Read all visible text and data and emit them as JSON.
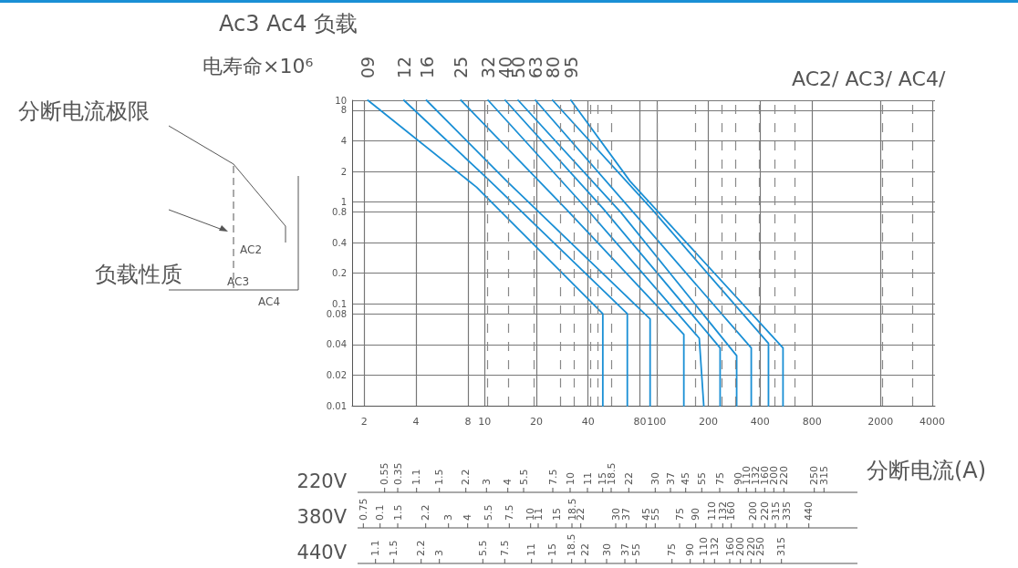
{
  "chart_data": {
    "type": "line",
    "title": "Ac3 Ac4 负载",
    "ylabel": "电寿命×10⁶",
    "xlabel": "分断电流(A)",
    "annotations": [
      "AC2/ AC3/ AC4/",
      "分断电流极限",
      "负载性质",
      "AC2",
      "AC3",
      "AC4",
      "220V",
      "0.55",
      "0.35",
      "1.1",
      "1.5",
      "2.2",
      "3",
      "4",
      "5.5",
      "7.5",
      "10",
      "11",
      "15",
      "18.5",
      "22",
      "30",
      "37",
      "45",
      "55",
      "75",
      "90",
      "110",
      "132",
      "160",
      "200",
      "220",
      "250",
      "315",
      "380V",
      "0.75",
      "0.1",
      "1.5",
      "2.2",
      "3",
      "4",
      "5.5",
      "7.5",
      "10",
      "11",
      "15",
      "18.5",
      "22",
      "30",
      "37",
      "45",
      "55",
      "75",
      "90",
      "110",
      "132",
      "160",
      "200",
      "220",
      "315",
      "335",
      "440",
      "440V",
      "1.1",
      "1.5",
      "2.2",
      "3",
      "5.5",
      "7.5",
      "11",
      "15",
      "18.5",
      "22",
      "30",
      "37",
      "55",
      "75",
      "90",
      "110",
      "132",
      "160",
      "200",
      "220",
      "250",
      "315"
    ],
    "log": "xy",
    "grid": true,
    "marker": "none",
    "xlim": [
      1.7,
      4150
    ],
    "xticks": [
      2,
      4,
      8,
      10,
      20,
      40,
      80,
      100,
      200,
      400,
      800,
      2000,
      4000
    ],
    "ylim": [
      0.01,
      10
    ],
    "yticks": [
      0.01,
      0.02,
      0.04,
      0.08,
      0.1,
      0.2,
      0.4,
      0.8,
      1,
      2,
      4,
      8,
      10
    ],
    "ref_lines": [
      {
        "axis": "x",
        "value": 10.4,
        "line_style": "dashed",
        "color": "#888888"
      },
      {
        "axis": "x",
        "value": 13.7,
        "line_style": "dashed",
        "color": "#888888"
      },
      {
        "axis": "x",
        "value": 19.3,
        "line_style": "dashed",
        "color": "#888888"
      },
      {
        "axis": "x",
        "value": 27.5,
        "line_style": "dashed",
        "color": "#888888"
      },
      {
        "axis": "x",
        "value": 33,
        "line_style": "dashed",
        "color": "#888888"
      },
      {
        "axis": "x",
        "value": 41.5,
        "line_style": "dashed",
        "color": "#888888"
      },
      {
        "axis": "x",
        "value": 45.3,
        "line_style": "dashed",
        "color": "#888888"
      },
      {
        "axis": "x",
        "value": 54.3,
        "line_style": "dashed",
        "color": "#888888"
      },
      {
        "axis": "x",
        "value": 101,
        "line_style": "dashed",
        "color": "#888888"
      },
      {
        "axis": "x",
        "value": 167,
        "line_style": "dashed",
        "color": "#888888"
      },
      {
        "axis": "x",
        "value": 240,
        "line_style": "dashed",
        "color": "#888888"
      },
      {
        "axis": "x",
        "value": 288,
        "line_style": "dashed",
        "color": "#888888"
      },
      {
        "axis": "x",
        "value": 396,
        "line_style": "dashed",
        "color": "#888888"
      },
      {
        "axis": "x",
        "value": 487,
        "line_style": "dashed",
        "color": "#888888"
      },
      {
        "axis": "x",
        "value": 636,
        "line_style": "dashed",
        "color": "#888888"
      },
      {
        "axis": "x",
        "value": 2050,
        "line_style": "dashed",
        "color": "#888888"
      },
      {
        "axis": "x",
        "value": 3063,
        "line_style": "dashed",
        "color": "#888888"
      }
    ],
    "series": [
      {
        "name": "09",
        "color": "#1a8fd5",
        "x": [
          2.1,
          9,
          48.7,
          48.7
        ],
        "values": [
          10,
          1.4,
          0.08,
          0.01
        ]
      },
      {
        "name": "12",
        "color": "#1a8fd5",
        "x": [
          3.4,
          10.4,
          67.6,
          67.6
        ],
        "values": [
          10,
          1.7,
          0.08,
          0.01
        ]
      },
      {
        "name": "16",
        "color": "#1a8fd5",
        "x": [
          4.6,
          13.5,
          91.7,
          91.7
        ],
        "values": [
          10,
          1.6,
          0.071,
          0.01
        ]
      },
      {
        "name": "25",
        "color": "#1a8fd5",
        "x": [
          7.3,
          29.9,
          144,
          144
        ],
        "values": [
          10,
          0.85,
          0.05,
          0.01
        ]
      },
      {
        "name": "32",
        "color": "#1a8fd5",
        "x": [
          10.5,
          38.1,
          177,
          188
        ],
        "values": [
          10,
          0.91,
          0.046,
          0.01
        ]
      },
      {
        "name": "40",
        "color": "#1a8fd5",
        "x": [
          13.2,
          48.7,
          234,
          234
        ],
        "values": [
          10,
          0.87,
          0.037,
          0.01
        ]
      },
      {
        "name": "50",
        "color": "#1a8fd5",
        "x": [
          15.7,
          62.1,
          292,
          292
        ],
        "values": [
          10,
          0.79,
          0.031,
          0.01
        ]
      },
      {
        "name": "63",
        "color": "#1a8fd5",
        "x": [
          19.8,
          79.3,
          355,
          355
        ],
        "values": [
          10,
          0.68,
          0.037,
          0.01
        ]
      },
      {
        "name": "80",
        "color": "#1a8fd5",
        "x": [
          24.9,
          95.1,
          447,
          447
        ],
        "values": [
          10,
          0.83,
          0.041,
          0.01
        ]
      },
      {
        "name": "95",
        "color": "#1a8fd5",
        "x": [
          31.8,
          70.2,
          543,
          543
        ],
        "values": [
          10,
          1.6,
          0.037,
          0.01
        ]
      }
    ]
  }
}
